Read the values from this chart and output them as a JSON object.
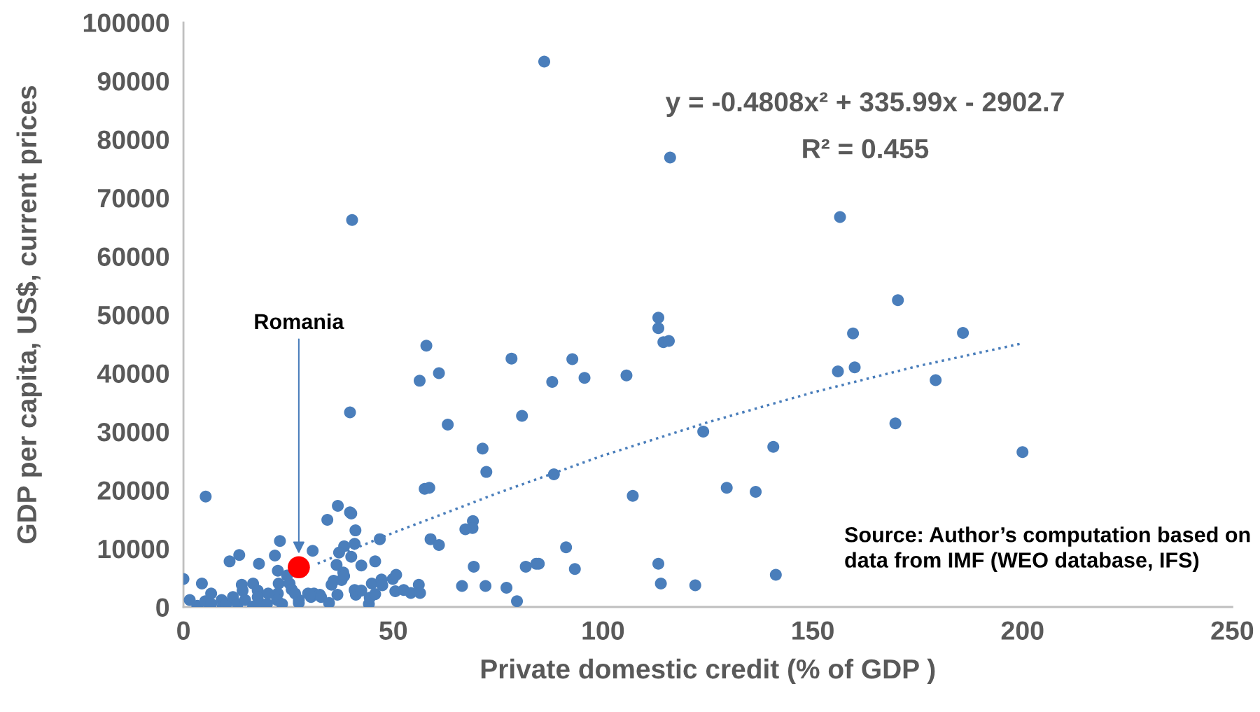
{
  "chart_data": {
    "type": "scatter",
    "xlabel": "Private domestic credit (% of GDP )",
    "ylabel": "GDP per capita, US$, current prices",
    "xlim": [
      0,
      250
    ],
    "xticks": [
      0,
      50,
      100,
      150,
      200,
      250
    ],
    "ylim": [
      0,
      100000
    ],
    "yticks": [
      0,
      10000,
      20000,
      30000,
      40000,
      50000,
      60000,
      70000,
      80000,
      90000,
      100000
    ],
    "grid": false,
    "legend": false,
    "marker": "circle",
    "series": [
      {
        "color": "#4a7ebb",
        "x": [
          86,
          116,
          40.2,
          156.5,
          170.3,
          113.2,
          113.2,
          114.4,
          115.7,
          159.6,
          185.8,
          57.9,
          78.2,
          92.7,
          160,
          156,
          60.9,
          56.3,
          87.9,
          95.6,
          105.6,
          179.3,
          39.7,
          80.7,
          63,
          169.7,
          123.9,
          71.3,
          140.6,
          200,
          72.2,
          88.3,
          5.3,
          107.1,
          57.5,
          58.6,
          129.5,
          136.4,
          36.8,
          39.7,
          40,
          34.3,
          69,
          68.9,
          67.2,
          41,
          46.8,
          58.9,
          60.9,
          23,
          38.3,
          40.8,
          91.2,
          30.8,
          13.3,
          11,
          21.8,
          18,
          36.5,
          45.7,
          40,
          37.1,
          69.2,
          81.6,
          84.1,
          84.7,
          93.3,
          113.2,
          141.2,
          38.1,
          22.5,
          42.4,
          66.4,
          72,
          77,
          113.8,
          122,
          79.5,
          0,
          1.5,
          3.3,
          4.4,
          5.2,
          6.6,
          6.6,
          9.1,
          9.4,
          10.2,
          11.8,
          12.9,
          13.9,
          14.1,
          14.7,
          16.6,
          16.6,
          17.7,
          17.7,
          18.5,
          19.9,
          20.2,
          22.5,
          22.7,
          22.3,
          23.5,
          24.7,
          25.3,
          25.8,
          26.6,
          27.5,
          27.5,
          29.7,
          30.4,
          31.1,
          32.5,
          32.8,
          34.7,
          35.3,
          35.8,
          36.7,
          37.7,
          38.3,
          40.8,
          41.1,
          42.4,
          44.2,
          44.4,
          44.9,
          45.7,
          47.2,
          47.4,
          49.9,
          50.5,
          50.7,
          52.5,
          54.2,
          56.1,
          56.4
        ],
        "values": [
          93300,
          76900,
          66200,
          66700,
          52500,
          49500,
          47700,
          45300,
          45500,
          46800,
          46900,
          44700,
          42500,
          42400,
          41000,
          40300,
          40000,
          38700,
          38500,
          39200,
          39600,
          38800,
          33300,
          32700,
          31200,
          31400,
          30000,
          27100,
          27400,
          26500,
          23100,
          22700,
          18900,
          19000,
          20200,
          20400,
          20400,
          19700,
          17300,
          16200,
          16000,
          14900,
          14700,
          13500,
          13300,
          13100,
          11600,
          11600,
          10600,
          11300,
          10400,
          10800,
          10200,
          9600,
          8900,
          7800,
          8800,
          7400,
          7200,
          7800,
          8600,
          9300,
          6900,
          6900,
          7400,
          7400,
          6500,
          7400,
          5500,
          5900,
          6200,
          7100,
          3600,
          3600,
          3300,
          4000,
          3700,
          1000,
          4800,
          1200,
          200,
          4000,
          1000,
          2300,
          500,
          1200,
          200,
          500,
          1700,
          500,
          3800,
          2800,
          1200,
          4000,
          100,
          2800,
          1700,
          500,
          500,
          2300,
          2300,
          4000,
          1200,
          500,
          5400,
          4000,
          3000,
          2300,
          1200,
          700,
          2300,
          1700,
          2300,
          2100,
          1700,
          700,
          3800,
          4500,
          2100,
          4600,
          5300,
          2900,
          2100,
          2800,
          500,
          1600,
          4000,
          2200,
          4700,
          3700,
          4800,
          2700,
          5500,
          2900,
          2400,
          3800,
          2400
        ]
      },
      {
        "type": "line",
        "line_style": "dotted",
        "marker": "none",
        "color": "#4a7ebb",
        "x": [
          32,
          50,
          75,
          100,
          125,
          150,
          175,
          200
        ],
        "values": [
          7400,
          12700,
          19500,
          25900,
          31600,
          36700,
          41200,
          45100
        ]
      },
      {
        "name": "Romania",
        "color": "#ff0000",
        "x": [
          27.5
        ],
        "values": [
          6800
        ]
      }
    ],
    "annotations": [
      "y = -0.4808x² + 335.99x - 2902.7",
      "R² = 0.455",
      "Source: Author’s computation based on data from IMF (WEO database, IFS)"
    ]
  }
}
